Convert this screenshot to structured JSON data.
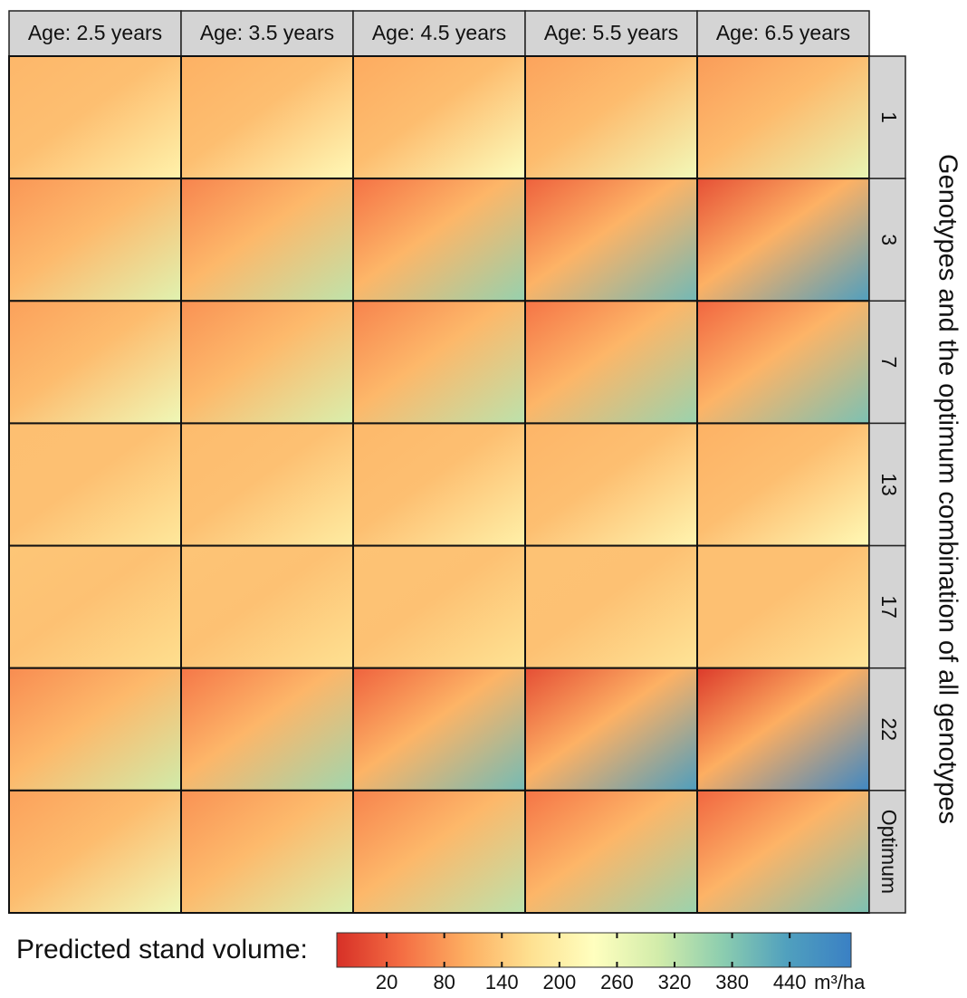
{
  "columns": [
    "Age: 2.5 years",
    "Age: 3.5 years",
    "Age: 4.5 years",
    "Age: 5.5 years",
    "Age: 6.5 years"
  ],
  "rows": [
    "1",
    "3",
    "7",
    "13",
    "17",
    "22",
    "Optimum"
  ],
  "row_axis_title": "Genotypes and the optimum combination of all genotypes",
  "legend": {
    "title": "Predicted stand volume:",
    "unit": "m³/ha",
    "lim": [
      -32,
      504
    ],
    "ticks": [
      20,
      80,
      140,
      200,
      260,
      320,
      380,
      440
    ]
  }
}
